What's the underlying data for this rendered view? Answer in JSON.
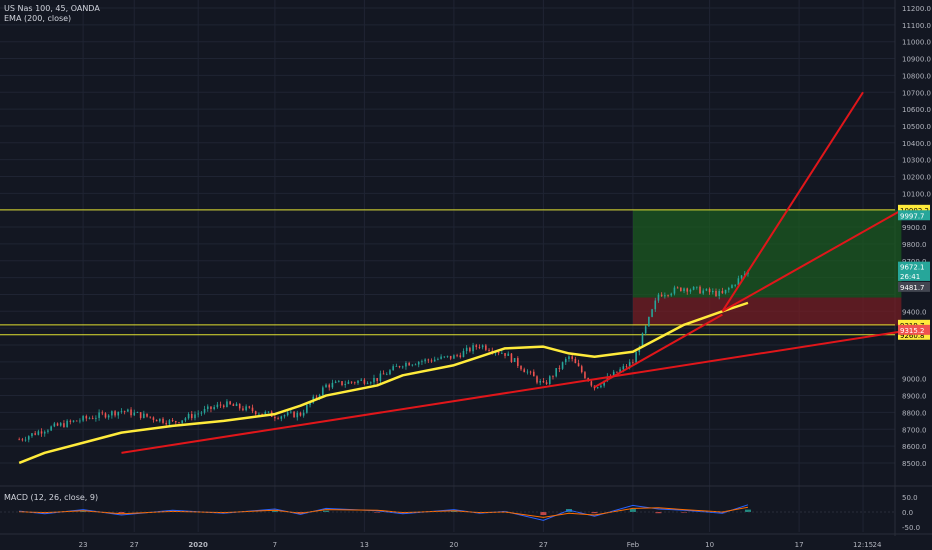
{
  "header": {
    "symbol": "US Nas 100, 45, OANDA",
    "ema": "EMA (200, close)",
    "macd": "MACD (12, 26, close, 9)"
  },
  "colors": {
    "background": "#131722",
    "grid": "#1f2433",
    "price_line": "#d1d4dc",
    "candle_up": "#26a69a",
    "candle_down": "#ef5350",
    "ema": "#ffeb3b",
    "trendline": "#e0161a",
    "horizontal_line": "#e0e030",
    "profit_zone": "#1b5e20",
    "loss_zone": "#7b1e22",
    "macd_line": "#2962ff",
    "signal_line": "#ff6d00"
  },
  "chart_data": [
    {
      "type": "line",
      "title": "US Nas 100, 45, OANDA",
      "ylim": [
        8400,
        11200
      ],
      "y_ticks": [
        "11200.0",
        "11100.0",
        "11000.0",
        "10900.0",
        "10800.0",
        "10700.0",
        "10600.0",
        "10500.0",
        "10400.0",
        "10300.0",
        "10200.0",
        "10100.0",
        "9900.0",
        "9800.0",
        "9700.0",
        "9400.0",
        "9000.0",
        "8900.0",
        "8800.0",
        "8700.0",
        "8600.0",
        "8500.0"
      ],
      "x_ticks": [
        "23",
        "27",
        "2020",
        "7",
        "13",
        "20",
        "27",
        "Feb",
        "10",
        "17",
        "12:15",
        "24"
      ],
      "series": [
        {
          "name": "US Nas 100",
          "style": "candles",
          "x": [
            "Dec 18",
            "Dec 20",
            "Dec 23",
            "Dec 26",
            "Dec 30",
            "Jan 2",
            "Jan 6",
            "Jan 8",
            "Jan 10",
            "Jan 14",
            "Jan 16",
            "Jan 20",
            "Jan 22",
            "Jan 24",
            "Jan 27",
            "Jan 29",
            "Jan 31",
            "Feb 3",
            "Feb 5",
            "Feb 7",
            "Feb 10",
            "Feb 12"
          ],
          "values": [
            8640,
            8700,
            8760,
            8810,
            8740,
            8850,
            8780,
            8790,
            8960,
            9000,
            9090,
            9130,
            9200,
            9150,
            8960,
            9130,
            8950,
            9100,
            9500,
            9540,
            9500,
            9640
          ]
        },
        {
          "name": "EMA (200, close)",
          "style": "line",
          "x": [
            "Dec 18",
            "Dec 20",
            "Dec 23",
            "Dec 26",
            "Dec 30",
            "Jan 2",
            "Jan 6",
            "Jan 8",
            "Jan 10",
            "Jan 14",
            "Jan 16",
            "Jan 20",
            "Jan 22",
            "Jan 24",
            "Jan 27",
            "Jan 29",
            "Jan 31",
            "Feb 3",
            "Feb 5",
            "Feb 7",
            "Feb 10",
            "Feb 12"
          ],
          "values": [
            8500,
            8560,
            8620,
            8680,
            8720,
            8750,
            8790,
            8840,
            8900,
            8960,
            9020,
            9080,
            9130,
            9180,
            9190,
            9150,
            9130,
            9160,
            9240,
            9320,
            9400,
            9450
          ]
        }
      ],
      "horizontal_lines": [
        {
          "value": 10002.2,
          "label": "10002.2"
        },
        {
          "value": 9319.7,
          "label": "9319.7"
        },
        {
          "value": 9260.8,
          "label": "9260.8"
        }
      ],
      "price_labels": [
        {
          "label": "9997.7",
          "color": "#26a69a"
        },
        {
          "label": "9672.1",
          "color": "#26a69a"
        },
        {
          "label": "26:41",
          "color": "#26a69a"
        },
        {
          "label": "9481.7",
          "color": "#434651"
        },
        {
          "label": "9315.2",
          "color": "#ef5350"
        }
      ],
      "trendlines": [
        {
          "name": "lower support line",
          "from": {
            "x": "Dec 26",
            "y": 8560
          },
          "to": {
            "x": "Feb 24",
            "y": 9280
          }
        },
        {
          "name": "steep fan line",
          "from": {
            "x": "Feb 10",
            "y": 9400
          },
          "to": {
            "x": "Feb 21",
            "y": 10700
          }
        },
        {
          "name": "medium fan line",
          "from": {
            "x": "Feb 10",
            "y": 9400
          },
          "to": {
            "x": "Feb 24",
            "y": 10000
          }
        },
        {
          "name": "short rising line",
          "from": {
            "x": "Jan 31",
            "y": 8950
          },
          "to": {
            "x": "Feb 10",
            "y": 9380
          }
        }
      ],
      "position": {
        "entry": 9481.7,
        "target": 10002.2,
        "stop": 9315.2,
        "from": "Feb 3",
        "to": "Feb 24"
      },
      "grid": true
    },
    {
      "type": "line",
      "title": "MACD (12, 26, close, 9)",
      "ylim": [
        -50,
        50
      ],
      "y_ticks": [
        "50.0",
        "0.0",
        "-50.0"
      ],
      "series": [
        {
          "name": "MACD",
          "values": [
            3,
            -6,
            8,
            -10,
            6,
            -4,
            10,
            -8,
            12,
            4,
            -6,
            8,
            -4,
            2,
            -28,
            6,
            -14,
            22,
            10,
            6,
            -4,
            24
          ]
        },
        {
          "name": "Signal",
          "values": [
            1,
            -2,
            4,
            -6,
            2,
            -2,
            6,
            -4,
            8,
            6,
            -2,
            4,
            -2,
            0,
            -18,
            -4,
            -10,
            12,
            14,
            8,
            0,
            16
          ]
        }
      ],
      "grid": true
    }
  ]
}
